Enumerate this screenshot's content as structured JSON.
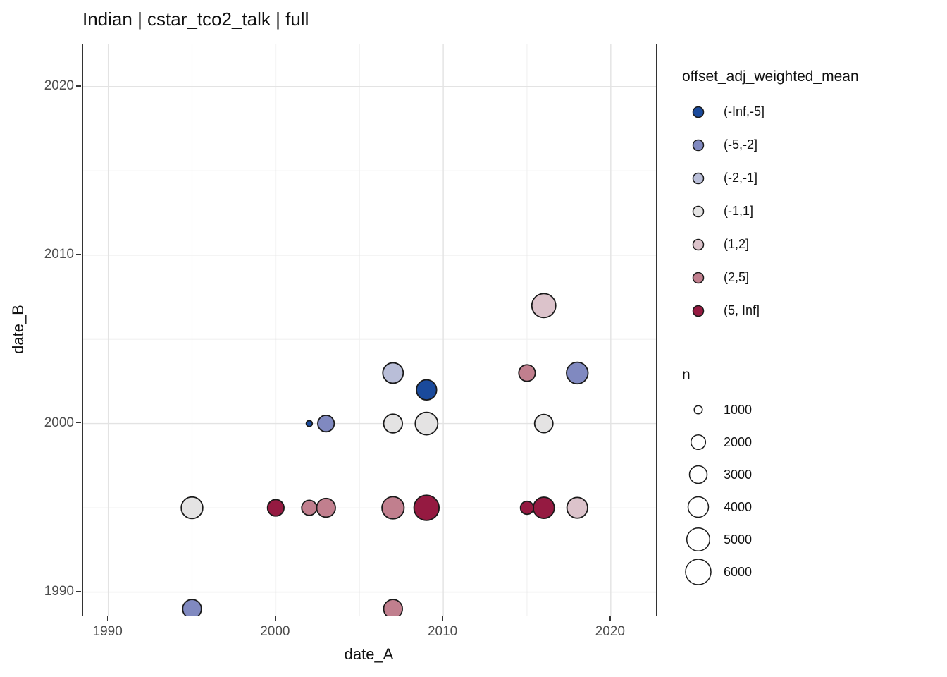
{
  "title": "Indian | cstar_tco2_talk | full",
  "chart_data": {
    "type": "scatter",
    "title": "Indian | cstar_tco2_talk | full",
    "xlabel": "date_A",
    "ylabel": "date_B",
    "xlim": [
      1988.5,
      2022.7
    ],
    "ylim": [
      1988.6,
      2022.5
    ],
    "x_major_ticks": [
      1990,
      2000,
      2010,
      2020
    ],
    "y_major_ticks": [
      1990,
      2000,
      2010,
      2020
    ],
    "x_minor_ticks": [
      1995,
      2005,
      2015
    ],
    "y_minor_ticks": [
      1995,
      2005,
      2015
    ],
    "grid": true,
    "legend_position": "right",
    "points": [
      {
        "x": 1995,
        "y": 1995,
        "bin": "(-1,1]",
        "n": 4700,
        "r": 15.3
      },
      {
        "x": 1995,
        "y": 1989,
        "bin": "(-5,-2]",
        "n": 3600,
        "r": 13.3
      },
      {
        "x": 2000,
        "y": 1995,
        "bin": "(5, Inf]",
        "n": 2800,
        "r": 11.7
      },
      {
        "x": 2002,
        "y": 1995,
        "bin": "(2,5]",
        "n": 2300,
        "r": 10.7
      },
      {
        "x": 2003,
        "y": 1995,
        "bin": "(2,5]",
        "n": 3600,
        "r": 13.3
      },
      {
        "x": 2002,
        "y": 2000,
        "bin": "(-Inf,-5]",
        "n": 400,
        "r": 4.3
      },
      {
        "x": 2003,
        "y": 2000,
        "bin": "(-5,-2]",
        "n": 2800,
        "r": 11.7
      },
      {
        "x": 2007,
        "y": 2003,
        "bin": "(-2,-1]",
        "n": 4200,
        "r": 14.5
      },
      {
        "x": 2007,
        "y": 2000,
        "bin": "(-1,1]",
        "n": 3600,
        "r": 13.3
      },
      {
        "x": 2007,
        "y": 1995,
        "bin": "(2,5]",
        "n": 4800,
        "r": 15.7
      },
      {
        "x": 2007,
        "y": 1989,
        "bin": "(2,5]",
        "n": 3600,
        "r": 13.3
      },
      {
        "x": 2009,
        "y": 2002,
        "bin": "(-Inf,-5]",
        "n": 4100,
        "r": 14.3
      },
      {
        "x": 2009,
        "y": 2000,
        "bin": "(-1,1]",
        "n": 5000,
        "r": 16.0
      },
      {
        "x": 2009,
        "y": 1995,
        "bin": "(5, Inf]",
        "n": 6200,
        "r": 17.8
      },
      {
        "x": 2015,
        "y": 2003,
        "bin": "(2,5]",
        "n": 2800,
        "r": 11.7
      },
      {
        "x": 2015,
        "y": 1995,
        "bin": "(5, Inf]",
        "n": 1700,
        "r": 9.3
      },
      {
        "x": 2016,
        "y": 2007,
        "bin": "(1,2]",
        "n": 5800,
        "r": 17.0
      },
      {
        "x": 2016,
        "y": 2000,
        "bin": "(-1,1]",
        "n": 3400,
        "r": 13.0
      },
      {
        "x": 2016,
        "y": 1995,
        "bin": "(5, Inf]",
        "n": 4500,
        "r": 15.0
      },
      {
        "x": 2018,
        "y": 2003,
        "bin": "(-5,-2]",
        "n": 4700,
        "r": 15.3
      },
      {
        "x": 2018,
        "y": 1995,
        "bin": "(1,2]",
        "n": 4300,
        "r": 14.7
      }
    ]
  },
  "color_legend": {
    "title": "offset_adj_weighted_mean",
    "items": [
      {
        "label": "(-Inf,-5]",
        "color": "#1a4a9c"
      },
      {
        "label": "(-5,-2]",
        "color": "#8089c0"
      },
      {
        "label": "(-2,-1]",
        "color": "#b9bed8"
      },
      {
        "label": "(-1,1]",
        "color": "#e4e3e3"
      },
      {
        "label": "(1,2]",
        "color": "#dcc3cb"
      },
      {
        "label": "(2,5]",
        "color": "#c17f8e"
      },
      {
        "label": "(5, Inf]",
        "color": "#951a41"
      }
    ]
  },
  "size_legend": {
    "title": "n",
    "items": [
      {
        "label": "1000",
        "r": 5.8
      },
      {
        "label": "2000",
        "r": 10.3
      },
      {
        "label": "3000",
        "r": 12.5
      },
      {
        "label": "4000",
        "r": 14.5
      },
      {
        "label": "5000",
        "r": 16.3
      },
      {
        "label": "6000",
        "r": 18.0
      }
    ]
  },
  "colors": {
    "point_outline": "#1a1a1a",
    "grid_major": "#e3e3e3",
    "grid_minor": "#f0f0f0",
    "panel_border": "#333333",
    "axis_text": "#4d4d4d",
    "background": "#ffffff"
  }
}
